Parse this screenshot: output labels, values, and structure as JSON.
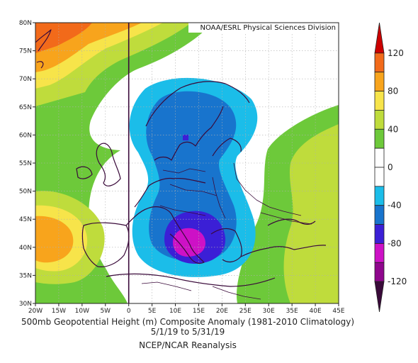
{
  "map": {
    "credit": "NOAA/ESRL Physical Sciences Division",
    "lat_labels": [
      "80N",
      "75N",
      "70N",
      "65N",
      "60N",
      "55N",
      "50N",
      "45N",
      "40N",
      "35N",
      "30N"
    ],
    "lon_labels": [
      "20W",
      "15W",
      "10W",
      "5W",
      "0",
      "5E",
      "10E",
      "15E",
      "20E",
      "25E",
      "30E",
      "35E",
      "40E",
      "45E"
    ],
    "extent": {
      "lon_min": -20,
      "lon_max": 45,
      "lat_min": 30,
      "lat_max": 80
    }
  },
  "captions": {
    "line1": "500mb Geopotential Height (m) Composite Anomaly (1981-2010 Climatology)",
    "line2": "5/1/19  to 5/31/19",
    "line3": "NCEP/NCAR Reanalysis"
  },
  "colorbar": {
    "labels": [
      "120",
      "80",
      "40",
      "0",
      "-40",
      "-80",
      "-120"
    ],
    "bins": [
      {
        "color": "#cc0000"
      },
      {
        "color": "#f26a1a"
      },
      {
        "color": "#f8a41c"
      },
      {
        "color": "#f7e44a"
      },
      {
        "color": "#bfdc3c"
      },
      {
        "color": "#6dc93a"
      },
      {
        "color": "#ffffff"
      },
      {
        "color": "#ffffff"
      },
      {
        "color": "#1bbde9"
      },
      {
        "color": "#1874cd"
      },
      {
        "color": "#3b1fd6"
      },
      {
        "color": "#cd11c6"
      },
      {
        "color": "#8f068d"
      },
      {
        "color": "#3a0a3a"
      }
    ]
  }
}
